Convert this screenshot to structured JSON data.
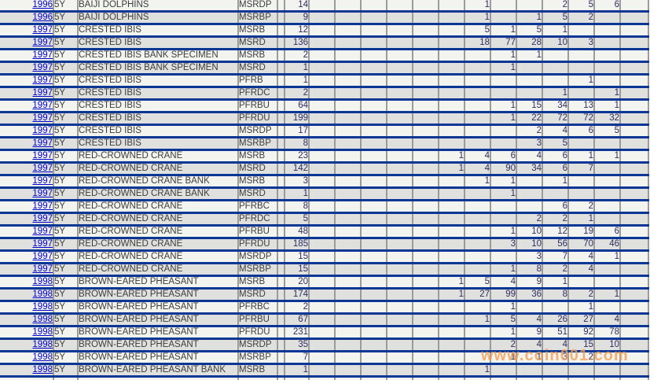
{
  "watermark": {
    "text": "www.coin001.com"
  },
  "colors": {
    "separator": "#0a3796",
    "grid": "#9b9b9b",
    "link": "#0000cc",
    "row_odd": "#f3f3f0",
    "row_even": "#e0e0de",
    "number": "#2e2e5e",
    "text": "#3d3d3d",
    "watermark": "#f2a155"
  },
  "table": {
    "grade_column_count": 13,
    "rows": [
      {
        "year": "1996",
        "denom": "5Y",
        "name": "BAIJI DOLPHINS",
        "code": "MSRDP",
        "total": "14",
        "grades": [
          "",
          "",
          "",
          "",
          "",
          "",
          "1",
          "",
          "",
          "2",
          "5",
          "6",
          ""
        ]
      },
      {
        "year": "1996",
        "denom": "5Y",
        "name": "BAIJI DOLPHINS",
        "code": "MSRBP",
        "total": "9",
        "grades": [
          "",
          "",
          "",
          "",
          "",
          "",
          "1",
          "",
          "1",
          "5",
          "2",
          "",
          ""
        ]
      },
      {
        "year": "1997",
        "denom": "5Y",
        "name": "CRESTED IBIS",
        "code": "MSRB",
        "total": "12",
        "grades": [
          "",
          "",
          "",
          "",
          "",
          "",
          "5",
          "1",
          "5",
          "1",
          "",
          "",
          ""
        ]
      },
      {
        "year": "1997",
        "denom": "5Y",
        "name": "CRESTED IBIS",
        "code": "MSRD",
        "total": "136",
        "grades": [
          "",
          "",
          "",
          "",
          "",
          "",
          "18",
          "77",
          "28",
          "10",
          "3",
          "",
          ""
        ]
      },
      {
        "year": "1997",
        "denom": "5Y",
        "name": "CRESTED IBIS BANK SPECIMEN",
        "code": "MSRB",
        "total": "2",
        "grades": [
          "",
          "",
          "",
          "",
          "",
          "",
          "",
          "1",
          "1",
          "",
          "",
          "",
          ""
        ]
      },
      {
        "year": "1997",
        "denom": "5Y",
        "name": "CRESTED IBIS BANK SPECIMEN",
        "code": "MSRD",
        "total": "1",
        "grades": [
          "",
          "",
          "",
          "",
          "",
          "",
          "",
          "1",
          "",
          "",
          "",
          "",
          ""
        ]
      },
      {
        "year": "1997",
        "denom": "5Y",
        "name": "CRESTED IBIS",
        "code": "PFRB",
        "total": "1",
        "grades": [
          "",
          "",
          "",
          "",
          "",
          "",
          "",
          "",
          "",
          "",
          "1",
          "",
          ""
        ]
      },
      {
        "year": "1997",
        "denom": "5Y",
        "name": "CRESTED IBIS",
        "code": "PFRDC",
        "total": "2",
        "grades": [
          "",
          "",
          "",
          "",
          "",
          "",
          "",
          "",
          "",
          "1",
          "",
          "1",
          ""
        ]
      },
      {
        "year": "1997",
        "denom": "5Y",
        "name": "CRESTED IBIS",
        "code": "PFRBU",
        "total": "64",
        "grades": [
          "",
          "",
          "",
          "",
          "",
          "",
          "",
          "1",
          "15",
          "34",
          "13",
          "1",
          ""
        ]
      },
      {
        "year": "1997",
        "denom": "5Y",
        "name": "CRESTED IBIS",
        "code": "PFRDU",
        "total": "199",
        "grades": [
          "",
          "",
          "",
          "",
          "",
          "",
          "",
          "1",
          "22",
          "72",
          "72",
          "32",
          ""
        ]
      },
      {
        "year": "1997",
        "denom": "5Y",
        "name": "CRESTED IBIS",
        "code": "MSRDP",
        "total": "17",
        "grades": [
          "",
          "",
          "",
          "",
          "",
          "",
          "",
          "",
          "2",
          "4",
          "6",
          "5",
          ""
        ]
      },
      {
        "year": "1997",
        "denom": "5Y",
        "name": "CRESTED IBIS",
        "code": "MSRBP",
        "total": "8",
        "grades": [
          "",
          "",
          "",
          "",
          "",
          "",
          "",
          "",
          "3",
          "5",
          "",
          "",
          ""
        ]
      },
      {
        "year": "1997",
        "denom": "5Y",
        "name": "RED-CROWNED CRANE",
        "code": "MSRB",
        "total": "23",
        "grades": [
          "",
          "",
          "",
          "",
          "",
          "1",
          "4",
          "6",
          "4",
          "6",
          "1",
          "1",
          ""
        ]
      },
      {
        "year": "1997",
        "denom": "5Y",
        "name": "RED-CROWNED CRANE",
        "code": "MSRD",
        "total": "142",
        "grades": [
          "",
          "",
          "",
          "",
          "",
          "1",
          "4",
          "90",
          "34",
          "6",
          "7",
          "",
          ""
        ]
      },
      {
        "year": "1997",
        "denom": "5Y",
        "name": "RED-CROWNED CRANE BANK",
        "code": "MSRB",
        "total": "3",
        "grades": [
          "",
          "",
          "",
          "",
          "",
          "",
          "1",
          "1",
          "",
          "1",
          "",
          "",
          ""
        ]
      },
      {
        "year": "1997",
        "denom": "5Y",
        "name": "RED-CROWNED CRANE BANK",
        "code": "MSRD",
        "total": "1",
        "grades": [
          "",
          "",
          "",
          "",
          "",
          "",
          "",
          "1",
          "",
          "",
          "",
          "",
          ""
        ]
      },
      {
        "year": "1997",
        "denom": "5Y",
        "name": "RED-CROWNED CRANE",
        "code": "PFRBC",
        "total": "8",
        "grades": [
          "",
          "",
          "",
          "",
          "",
          "",
          "",
          "",
          "",
          "6",
          "2",
          "",
          ""
        ]
      },
      {
        "year": "1997",
        "denom": "5Y",
        "name": "RED-CROWNED CRANE",
        "code": "PFRDC",
        "total": "5",
        "grades": [
          "",
          "",
          "",
          "",
          "",
          "",
          "",
          "",
          "2",
          "2",
          "1",
          "",
          ""
        ]
      },
      {
        "year": "1997",
        "denom": "5Y",
        "name": "RED-CROWNED CRANE",
        "code": "PFRBU",
        "total": "48",
        "grades": [
          "",
          "",
          "",
          "",
          "",
          "",
          "",
          "1",
          "10",
          "12",
          "19",
          "6",
          ""
        ]
      },
      {
        "year": "1997",
        "denom": "5Y",
        "name": "RED-CROWNED CRANE",
        "code": "PFRDU",
        "total": "185",
        "grades": [
          "",
          "",
          "",
          "",
          "",
          "",
          "",
          "3",
          "10",
          "56",
          "70",
          "46",
          ""
        ]
      },
      {
        "year": "1997",
        "denom": "5Y",
        "name": "RED-CROWNED CRANE",
        "code": "MSRDP",
        "total": "15",
        "grades": [
          "",
          "",
          "",
          "",
          "",
          "",
          "",
          "",
          "3",
          "7",
          "4",
          "1",
          ""
        ]
      },
      {
        "year": "1997",
        "denom": "5Y",
        "name": "RED-CROWNED CRANE",
        "code": "MSRBP",
        "total": "15",
        "grades": [
          "",
          "",
          "",
          "",
          "",
          "",
          "",
          "1",
          "8",
          "2",
          "4",
          "",
          ""
        ]
      },
      {
        "year": "1998",
        "denom": "5Y",
        "name": "BROWN-EARED PHEASANT",
        "code": "MSRB",
        "total": "20",
        "grades": [
          "",
          "",
          "",
          "",
          "",
          "1",
          "5",
          "4",
          "9",
          "1",
          "",
          "",
          ""
        ]
      },
      {
        "year": "1998",
        "denom": "5Y",
        "name": "BROWN-EARED PHEASANT",
        "code": "MSRD",
        "total": "174",
        "grades": [
          "",
          "",
          "",
          "",
          "",
          "1",
          "27",
          "99",
          "36",
          "8",
          "2",
          "1",
          ""
        ]
      },
      {
        "year": "1998",
        "denom": "5Y",
        "name": "BROWN-EARED PHEASANT",
        "code": "PFRBC",
        "total": "2",
        "grades": [
          "",
          "",
          "",
          "",
          "",
          "",
          "",
          "1",
          "",
          "",
          "1",
          "",
          ""
        ]
      },
      {
        "year": "1998",
        "denom": "5Y",
        "name": "BROWN-EARED PHEASANT",
        "code": "PFRBU",
        "total": "67",
        "grades": [
          "",
          "",
          "",
          "",
          "",
          "",
          "1",
          "5",
          "4",
          "26",
          "27",
          "4",
          ""
        ]
      },
      {
        "year": "1998",
        "denom": "5Y",
        "name": "BROWN-EARED PHEASANT",
        "code": "PFRDU",
        "total": "231",
        "grades": [
          "",
          "",
          "",
          "",
          "",
          "",
          "",
          "1",
          "9",
          "51",
          "92",
          "78",
          ""
        ]
      },
      {
        "year": "1998",
        "denom": "5Y",
        "name": "BROWN-EARED PHEASANT",
        "code": "MSRDP",
        "total": "35",
        "grades": [
          "",
          "",
          "",
          "",
          "",
          "",
          "",
          "2",
          "4",
          "4",
          "15",
          "10",
          ""
        ]
      },
      {
        "year": "1998",
        "denom": "5Y",
        "name": "BROWN-EARED PHEASANT",
        "code": "MSRBP",
        "total": "7",
        "grades": [
          "",
          "",
          "",
          "",
          "",
          "",
          "",
          "1",
          "1",
          "3",
          "2",
          "",
          ""
        ]
      },
      {
        "year": "1998",
        "denom": "5Y",
        "name": "BROWN-EARED PHEASANT BANK",
        "code": "MSRB",
        "total": "1",
        "grades": [
          "",
          "",
          "",
          "",
          "",
          "",
          "1",
          "",
          "",
          "",
          "",
          "",
          ""
        ]
      }
    ]
  }
}
